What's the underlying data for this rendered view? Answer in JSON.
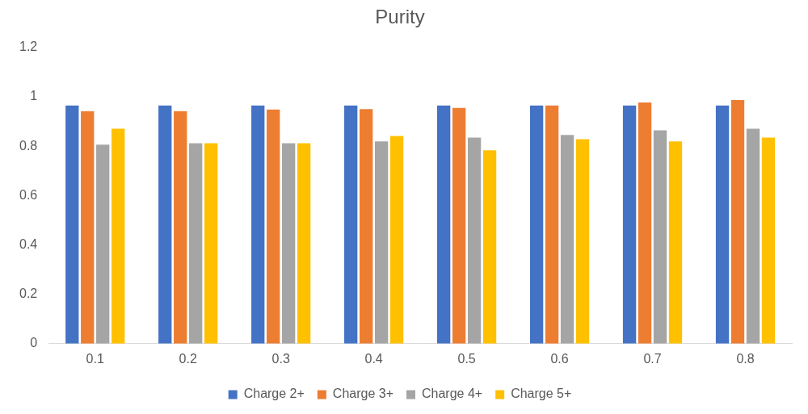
{
  "chart_data": {
    "type": "bar",
    "title": "Purity",
    "categories": [
      "0.1",
      "0.2",
      "0.3",
      "0.4",
      "0.5",
      "0.6",
      "0.7",
      "0.8"
    ],
    "series": [
      {
        "name": "Charge 2+",
        "color": "#4472c4",
        "values": [
          0.965,
          0.965,
          0.965,
          0.965,
          0.965,
          0.965,
          0.965,
          0.965
        ]
      },
      {
        "name": "Charge 3+",
        "color": "#ed7d31",
        "values": [
          0.942,
          0.942,
          0.948,
          0.95,
          0.955,
          0.965,
          0.977,
          0.987
        ]
      },
      {
        "name": "Charge 4+",
        "color": "#a5a5a5",
        "values": [
          0.806,
          0.812,
          0.812,
          0.819,
          0.835,
          0.845,
          0.864,
          0.871
        ]
      },
      {
        "name": "Charge 5+",
        "color": "#ffc000",
        "values": [
          0.871,
          0.812,
          0.812,
          0.841,
          0.783,
          0.828,
          0.819,
          0.835
        ]
      }
    ],
    "ylim": [
      0,
      1.2
    ],
    "yticks": [
      0,
      0.2,
      0.4,
      0.6,
      0.8,
      1,
      1.2
    ],
    "grid": false,
    "legend": "bottom"
  }
}
